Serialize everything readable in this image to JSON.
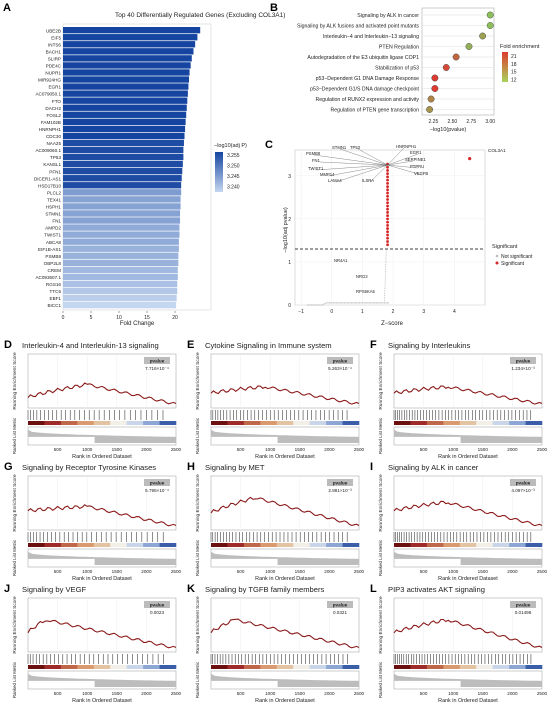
{
  "panels": {
    "A": {
      "letter": "A",
      "title": "Top 40 Differentially Regulated Genes (Excluding COL3A1)",
      "xlabel": "Fold Change",
      "xticks": [
        0,
        5,
        10,
        15,
        20
      ],
      "xlim": [
        0,
        25
      ],
      "legend_title": "−log10(adj P)",
      "legend_ticks": [
        "3.255",
        "3.250",
        "3.245",
        "3.240"
      ],
      "genes": [
        "UBE2B",
        "EIF5",
        "INTS6",
        "BACH1",
        "SLIRP",
        "PDE4C",
        "NUPR1",
        "MIR924HG",
        "EGR1",
        "AC079050.1",
        "FTO",
        "DACH2",
        "FOSL2",
        "FAM102B",
        "HNRNPH1",
        "CDC30",
        "NAA25",
        "AC009060.1",
        "TP53",
        "KANSL1",
        "PFN1",
        "DICER1-AS1",
        "HSD17B10",
        "PLCL2",
        "TEX41",
        "HSPH1",
        "STMN1",
        "FN1",
        "AMPD2",
        "TWIST1",
        "ABCA8",
        "EIF1B-AS1",
        "PSMB8",
        "OBP2L8",
        "CREM",
        "AC093607.1",
        "RGS16",
        "TTC6",
        "EBF1",
        "BICC1"
      ],
      "fold_change": [
        24.5,
        24.0,
        23.6,
        23.3,
        23.0,
        22.8,
        22.6,
        22.5,
        22.4,
        22.3,
        22.2,
        22.1,
        22.0,
        21.9,
        21.8,
        21.7,
        21.6,
        21.5,
        21.5,
        21.4,
        21.3,
        21.2,
        21.1,
        21.1,
        21.0,
        21.0,
        20.9,
        20.9,
        20.8,
        20.8,
        20.7,
        20.7,
        20.6,
        20.6,
        20.5,
        20.5,
        20.4,
        20.4,
        20.3,
        20.2
      ],
      "neglog10p": [
        3.257,
        3.257,
        3.257,
        3.257,
        3.257,
        3.257,
        3.257,
        3.257,
        3.257,
        3.257,
        3.257,
        3.257,
        3.257,
        3.257,
        3.257,
        3.257,
        3.256,
        3.256,
        3.256,
        3.256,
        3.256,
        3.256,
        3.256,
        3.245,
        3.244,
        3.244,
        3.244,
        3.244,
        3.243,
        3.243,
        3.243,
        3.242,
        3.242,
        3.242,
        3.241,
        3.241,
        3.24,
        3.239,
        3.238,
        3.237
      ]
    },
    "B": {
      "letter": "B",
      "xlabel": "−log10(pvalue)",
      "xticks": [
        "2.25",
        "2.50",
        "2.75",
        "3.00"
      ],
      "xlim": [
        2.1,
        3.05
      ],
      "legend_title": "Fold enrichment",
      "legend_ticks": [
        "21",
        "18",
        "15",
        "12"
      ],
      "terms": [
        "Signaling by ALK in cancer",
        "Signaling by ALK fusions and activated point mutants",
        "Interleukin−4 and Interleukin−13 signaling",
        "PTEN Regulation",
        "Autodegradation of the E3 ubiquitin ligase COP1",
        "Stabilization of p53",
        "p53−Dependent G1 DNA Damage Response",
        "p53−Dependent G1/S DNA damage checkpoint",
        "Regulation of RUNX2 expression and activity",
        "Regulation of PTEN gene transcription"
      ],
      "neglog10p": [
        3.0,
        3.0,
        2.9,
        2.72,
        2.55,
        2.42,
        2.27,
        2.27,
        2.22,
        2.2
      ],
      "fold_enrichment": [
        12,
        12,
        14,
        13,
        18,
        20,
        21,
        21,
        16,
        15
      ]
    },
    "C": {
      "letter": "C",
      "xlabel": "Z−score",
      "ylabel": "−log10(adj pvalue)",
      "xticks": [
        "−1",
        "0",
        "1",
        "2",
        "3",
        "4"
      ],
      "yticks": [
        "0",
        "1",
        "2",
        "3"
      ],
      "legend_title": "Significant",
      "legend_items": [
        "Not significant",
        "Significant"
      ],
      "threshold": 1.3,
      "labels": [
        "STMN1",
        "TP53",
        "HNRNPH1",
        "PSMB8",
        "EGR1",
        "FN1",
        "SERPINE1",
        "TWIST1",
        "PTPRU",
        "MMP14",
        "VEGFB",
        "LAMA4",
        "ILSRA",
        "NR4A1",
        "NRG3",
        "RPS6KA5",
        "COL3A1"
      ]
    },
    "gsea": [
      {
        "letter": "D",
        "title": "Interleukin-4 and Interleukin-13 signaling",
        "pvalue_label": "pvalue",
        "pvalue": "7.716×10⁻⁴"
      },
      {
        "letter": "E",
        "title": "Cytokine Signaling in Immune system",
        "pvalue_label": "pvalue",
        "pvalue": "5.263×10⁻⁴"
      },
      {
        "letter": "F",
        "title": "Signaling by Interleukins",
        "pvalue_label": "pvalue",
        "pvalue": "1.234×10⁻³"
      },
      {
        "letter": "G",
        "title": "Signaling by Receptor Tyrosine Kinases",
        "pvalue_label": "pvalue",
        "pvalue": "5.795×10⁻⁴"
      },
      {
        "letter": "H",
        "title": "Signaling by MET",
        "pvalue_label": "pvalue",
        "pvalue": "2.881×10⁻³"
      },
      {
        "letter": "I",
        "title": "Signaling by ALK in cancer",
        "pvalue_label": "pvalue",
        "pvalue": "4.097×10⁻³"
      },
      {
        "letter": "J",
        "title": "Signaling by VEGF",
        "pvalue_label": "pvalue",
        "pvalue": "0.0023"
      },
      {
        "letter": "K",
        "title": "Signaling by TGFB family members",
        "pvalue_label": "pvalue",
        "pvalue": "0.0321"
      },
      {
        "letter": "L",
        "title": "PIP3 activates AKT signaling",
        "pvalue_label": "pvalue",
        "pvalue": "0.01496"
      }
    ],
    "gsea_common": {
      "ylabel_top": "Running Enrichment Score",
      "ylabel_bottom": "Ranked List Metric",
      "xlabel": "Rank in Ordered Dataset",
      "xticks": [
        "500",
        "1000",
        "1500",
        "2000",
        "2500"
      ]
    }
  },
  "chart_data": [
    {
      "type": "bar",
      "title": "Top 40 Differentially Regulated Genes (Excluding COL3A1)",
      "xlabel": "Fold Change",
      "ylabel": "",
      "xlim": [
        0,
        25
      ],
      "orientation": "horizontal",
      "color_by": "−log10(adj P)"
    },
    {
      "type": "scatter",
      "title": "",
      "xlabel": "−log10(pvalue)",
      "ylabel": "",
      "color_by": "Fold enrichment"
    },
    {
      "type": "scatter",
      "title": "",
      "xlabel": "Z−score",
      "ylabel": "−log10(adj pvalue)",
      "xlim": [
        -1.2,
        5
      ],
      "ylim": [
        0,
        3.6
      ],
      "points": [
        {
          "label": "COL3A1",
          "x": 4.5,
          "y": 3.4
        },
        {
          "label": "NR4A1",
          "x": 1.85,
          "y": 2.2
        },
        {
          "label": "NRG3",
          "x": 1.85,
          "y": 2.05
        },
        {
          "label": "RPS6KA5",
          "x": 1.85,
          "y": 1.75
        }
      ]
    },
    {
      "type": "line",
      "title": "GSEA running enrichment score",
      "xlabel": "Rank in Ordered Dataset",
      "xlim": [
        0,
        2500
      ],
      "ylim": [
        -0.3,
        0.6
      ],
      "peaks": [
        {
          "letter": "D",
          "rank": 1000,
          "es": 0.5
        },
        {
          "letter": "E",
          "rank": 900,
          "es": 0.45
        },
        {
          "letter": "F",
          "rank": 900,
          "es": 0.45
        },
        {
          "letter": "G",
          "rank": 1000,
          "es": 0.45
        },
        {
          "letter": "H",
          "rank": 800,
          "es": 0.55
        },
        {
          "letter": "I",
          "rank": 800,
          "es": 0.5
        },
        {
          "letter": "J",
          "rank": 300,
          "es": 0.55
        },
        {
          "letter": "K",
          "rank": 400,
          "es": 0.5
        },
        {
          "letter": "L",
          "rank": 900,
          "es": 0.55
        }
      ]
    }
  ]
}
